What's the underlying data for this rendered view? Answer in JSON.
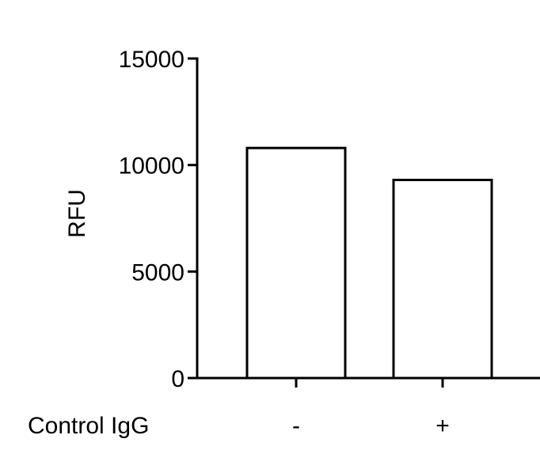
{
  "chart_data": {
    "type": "bar",
    "title": "",
    "xlabel": "",
    "ylabel": "RFU",
    "row_label": "Control IgG",
    "categories": [
      "-",
      "+"
    ],
    "values": [
      10800,
      9300
    ],
    "ylim": [
      0,
      15000
    ],
    "yticks": [
      0,
      5000,
      10000,
      15000
    ],
    "ytick_labels": [
      "0",
      "5000",
      "10000",
      "15000"
    ],
    "grid": false,
    "legend": "none",
    "bar_fill": "#ffffff",
    "bar_edge": "#000000"
  }
}
